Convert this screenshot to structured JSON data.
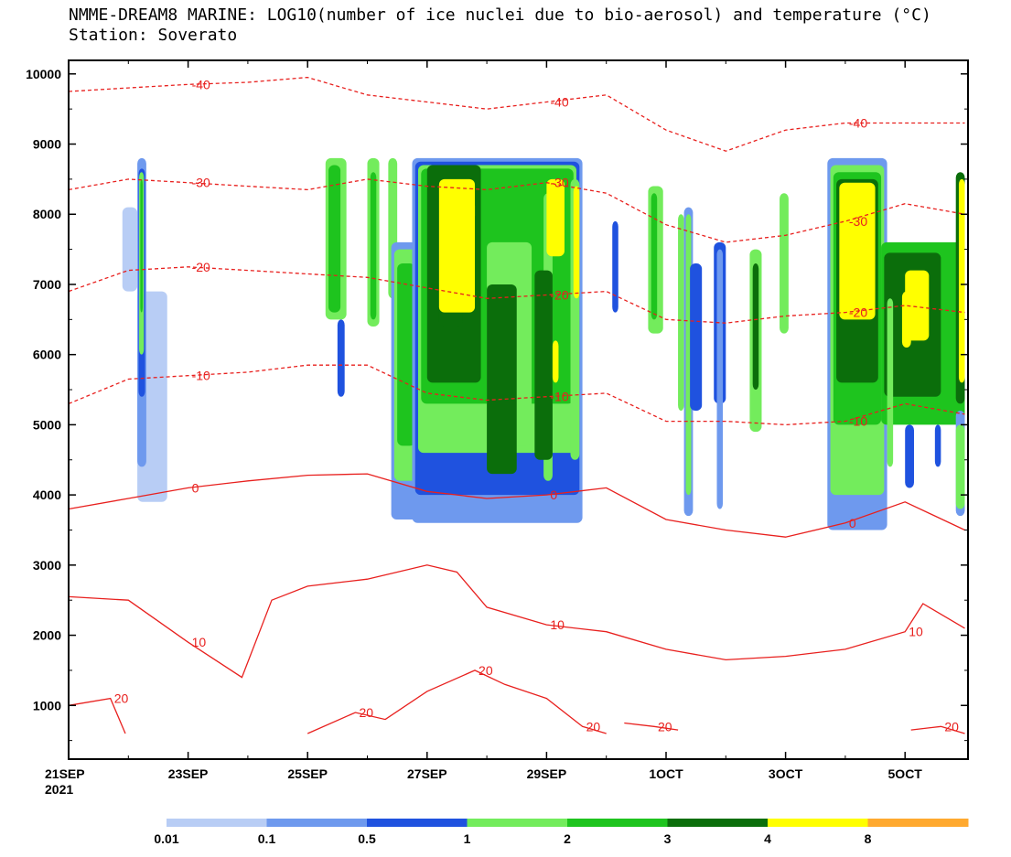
{
  "header": {
    "title": "NMME-DREAM8 MARINE: LOG10(number of ice nuclei due to bio-aerosol) and temperature (°C)",
    "subtitle": "Station: Soverato"
  },
  "chart_data": {
    "type": "contour",
    "x_tick_labels": [
      "21SEP",
      "23SEP",
      "25SEP",
      "27SEP",
      "29SEP",
      "1OCT",
      "3OCT",
      "5OCT"
    ],
    "x_year_label": "2021",
    "x_range_days": [
      0,
      15
    ],
    "y_tick_labels": [
      "1000",
      "2000",
      "3000",
      "4000",
      "5000",
      "6000",
      "7000",
      "8000",
      "9000",
      "10000"
    ],
    "ylim": [
      0,
      10000
    ],
    "colorbar": {
      "labels": [
        "0.01",
        "0.1",
        "0.5",
        "1",
        "2",
        "3",
        "4",
        "8"
      ],
      "colors": [
        "#b8cdf5",
        "#6e99ee",
        "#1f52df",
        "#73ec5c",
        "#1ec41e",
        "#0b6e0b",
        "#ffff00",
        "#ffa92f"
      ]
    },
    "temperature_contours": [
      {
        "label": "-40",
        "points": [
          [
            0,
            9750
          ],
          [
            1,
            9800
          ],
          [
            2,
            9850
          ],
          [
            3,
            9880
          ],
          [
            4,
            9950
          ],
          [
            5,
            9700
          ],
          [
            6,
            9600
          ],
          [
            7,
            9500
          ],
          [
            8,
            9600
          ],
          [
            9,
            9700
          ],
          [
            10,
            9200
          ],
          [
            11,
            8900
          ],
          [
            12,
            9200
          ],
          [
            13,
            9300
          ],
          [
            14,
            9300
          ],
          [
            15,
            9300
          ]
        ]
      },
      {
        "label": "-30",
        "points": [
          [
            0,
            8350
          ],
          [
            1,
            8500
          ],
          [
            2,
            8450
          ],
          [
            3,
            8400
          ],
          [
            4,
            8350
          ],
          [
            5,
            8500
          ],
          [
            6,
            8400
          ],
          [
            7,
            8350
          ],
          [
            8,
            8450
          ],
          [
            9,
            8300
          ],
          [
            10,
            7850
          ],
          [
            11,
            7600
          ],
          [
            12,
            7700
          ],
          [
            13,
            7900
          ],
          [
            14,
            8150
          ],
          [
            15,
            8000
          ]
        ]
      },
      {
        "label": "-20",
        "points": [
          [
            0,
            6900
          ],
          [
            1,
            7200
          ],
          [
            2,
            7250
          ],
          [
            3,
            7200
          ],
          [
            4,
            7150
          ],
          [
            5,
            7100
          ],
          [
            6,
            6950
          ],
          [
            7,
            6800
          ],
          [
            8,
            6850
          ],
          [
            9,
            6900
          ],
          [
            10,
            6500
          ],
          [
            11,
            6450
          ],
          [
            12,
            6550
          ],
          [
            13,
            6600
          ],
          [
            14,
            6700
          ],
          [
            15,
            6600
          ]
        ]
      },
      {
        "label": "-10",
        "points": [
          [
            0,
            5300
          ],
          [
            1,
            5650
          ],
          [
            2,
            5700
          ],
          [
            3,
            5750
          ],
          [
            4,
            5850
          ],
          [
            5,
            5850
          ],
          [
            6,
            5450
          ],
          [
            7,
            5350
          ],
          [
            8,
            5400
          ],
          [
            9,
            5450
          ],
          [
            10,
            5050
          ],
          [
            11,
            5050
          ],
          [
            12,
            5000
          ],
          [
            13,
            5050
          ],
          [
            14,
            5300
          ],
          [
            15,
            5150
          ]
        ]
      },
      {
        "label": "0",
        "points": [
          [
            0,
            3800
          ],
          [
            1,
            3950
          ],
          [
            2,
            4100
          ],
          [
            3,
            4200
          ],
          [
            4,
            4280
          ],
          [
            5,
            4300
          ],
          [
            6,
            4050
          ],
          [
            7,
            3950
          ],
          [
            8,
            4000
          ],
          [
            9,
            4100
          ],
          [
            10,
            3650
          ],
          [
            11,
            3500
          ],
          [
            12,
            3400
          ],
          [
            13,
            3600
          ],
          [
            14,
            3900
          ],
          [
            15,
            3500
          ]
        ]
      },
      {
        "label": "10",
        "points": [
          [
            0,
            2550
          ],
          [
            1,
            2500
          ],
          [
            2,
            1900
          ],
          [
            2.9,
            1400
          ],
          [
            3.4,
            2500
          ],
          [
            4,
            2700
          ],
          [
            5,
            2800
          ],
          [
            6,
            3000
          ],
          [
            6.5,
            2900
          ],
          [
            7,
            2400
          ],
          [
            8,
            2150
          ],
          [
            9,
            2050
          ],
          [
            10,
            1800
          ],
          [
            11,
            1650
          ],
          [
            12,
            1700
          ],
          [
            13,
            1800
          ],
          [
            14,
            2050
          ],
          [
            14.3,
            2450
          ],
          [
            15,
            2100
          ]
        ]
      },
      {
        "label": "20",
        "segments": [
          [
            [
              0,
              1000
            ],
            [
              0.7,
              1100
            ],
            [
              0.95,
              600
            ]
          ],
          [
            [
              4,
              600
            ],
            [
              4.8,
              900
            ],
            [
              5.3,
              800
            ],
            [
              6,
              1200
            ],
            [
              6.8,
              1500
            ],
            [
              7.3,
              1300
            ],
            [
              8,
              1100
            ],
            [
              8.6,
              700
            ],
            [
              9,
              600
            ]
          ],
          [
            [
              9.3,
              750
            ],
            [
              9.8,
              700
            ],
            [
              10.2,
              650
            ]
          ],
          [
            [
              14.1,
              650
            ],
            [
              14.6,
              700
            ],
            [
              15,
              600
            ]
          ]
        ]
      }
    ]
  }
}
